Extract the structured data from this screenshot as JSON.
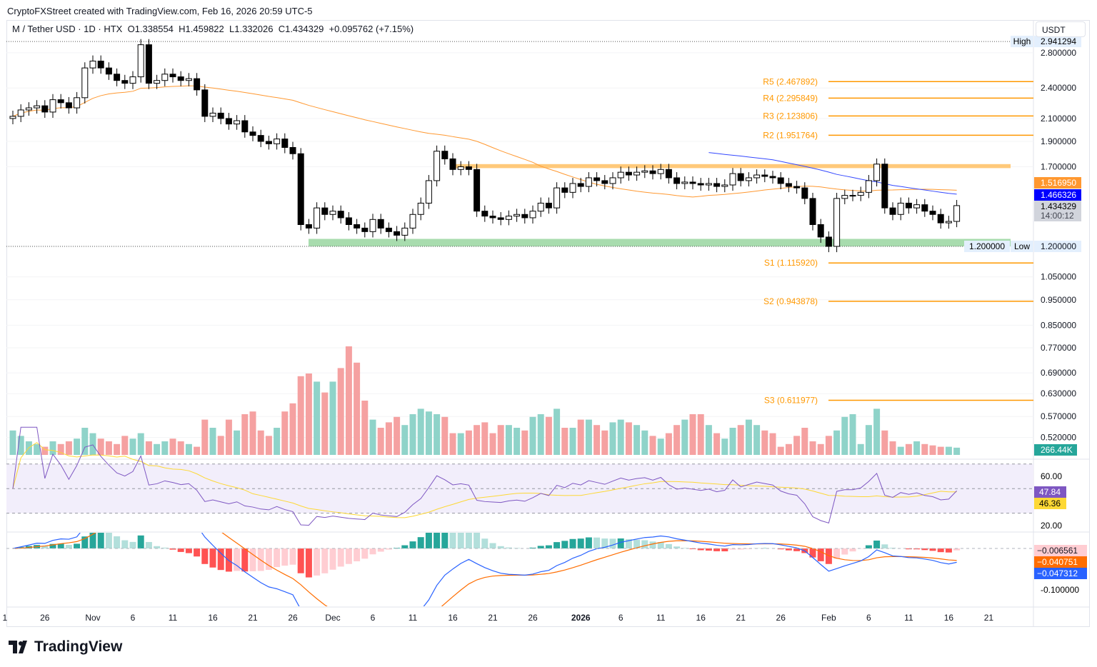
{
  "credit": "CryptoFXStreet created with TradingView.com, Feb 16, 2026 20:59 UTC-5",
  "legend": {
    "symbol": "M / Tether USD · 1D · HTX",
    "open": "O1.338554",
    "high": "H1.459822",
    "low": "L1.332026",
    "close": "C1.434329",
    "change": "+0.095762 (+7.15%)"
  },
  "currency": "USDT",
  "logo": "TradingView",
  "colors": {
    "up": "#ffffff",
    "down": "#000000",
    "vol_up": "#8fd3c9",
    "vol_down": "#f5a1a1",
    "sma": "#ff9830",
    "ma_blue": "#3448ff",
    "resistance": "#ffc97a",
    "support": "#a8dcae",
    "pivot": "#ff9800",
    "rsi": "#7e57c2",
    "rsi_ma": "#fdd835",
    "macd": "#2962ff",
    "signal": "#ff6d00"
  },
  "chart_data": {
    "type": "candlestick",
    "title": "M / Tether USD · 1D · HTX",
    "y_scale": "log",
    "ylim": [
      0.5,
      3.0
    ],
    "y_ticks": [
      "2.800000",
      "2.400000",
      "2.100000",
      "1.900000",
      "1.700000",
      "1.200000",
      "1.050000",
      "0.950000",
      "0.850000",
      "0.770000",
      "0.690000",
      "0.630000",
      "0.570000",
      "0.520000"
    ],
    "x_ticks": [
      {
        "label": "1",
        "i": -1
      },
      {
        "label": "26",
        "i": 4
      },
      {
        "label": "Nov",
        "i": 10
      },
      {
        "label": "6",
        "i": 15
      },
      {
        "label": "11",
        "i": 20
      },
      {
        "label": "16",
        "i": 25
      },
      {
        "label": "21",
        "i": 30
      },
      {
        "label": "26",
        "i": 35
      },
      {
        "label": "Dec",
        "i": 40
      },
      {
        "label": "6",
        "i": 45
      },
      {
        "label": "11",
        "i": 50
      },
      {
        "label": "16",
        "i": 55
      },
      {
        "label": "21",
        "i": 60
      },
      {
        "label": "26",
        "i": 65
      },
      {
        "label": "2026",
        "i": 71
      },
      {
        "label": "6",
        "i": 76
      },
      {
        "label": "11",
        "i": 81
      },
      {
        "label": "16",
        "i": 86
      },
      {
        "label": "21",
        "i": 91
      },
      {
        "label": "26",
        "i": 96
      },
      {
        "label": "Feb",
        "i": 102
      },
      {
        "label": "6",
        "i": 107
      },
      {
        "label": "11",
        "i": 112
      },
      {
        "label": "16",
        "i": 117
      },
      {
        "label": "21",
        "i": 122
      }
    ],
    "start_date": "Oct 22, 2025",
    "first_open": 2.1,
    "close": [
      2.12,
      2.18,
      2.2,
      2.22,
      2.16,
      2.28,
      2.25,
      2.2,
      2.3,
      2.62,
      2.7,
      2.62,
      2.55,
      2.48,
      2.45,
      2.52,
      2.9,
      2.45,
      2.48,
      2.55,
      2.52,
      2.48,
      2.5,
      2.38,
      2.12,
      2.15,
      2.1,
      2.05,
      2.08,
      1.98,
      1.95,
      1.9,
      1.88,
      1.92,
      1.85,
      1.8,
      1.32,
      1.3,
      1.42,
      1.38,
      1.4,
      1.36,
      1.32,
      1.3,
      1.28,
      1.35,
      1.3,
      1.28,
      1.26,
      1.3,
      1.38,
      1.45,
      1.6,
      1.82,
      1.76,
      1.68,
      1.7,
      1.68,
      1.4,
      1.37,
      1.36,
      1.35,
      1.37,
      1.38,
      1.36,
      1.4,
      1.45,
      1.42,
      1.55,
      1.52,
      1.58,
      1.56,
      1.62,
      1.6,
      1.58,
      1.62,
      1.66,
      1.64,
      1.66,
      1.67,
      1.65,
      1.68,
      1.62,
      1.58,
      1.59,
      1.58,
      1.57,
      1.58,
      1.56,
      1.57,
      1.65,
      1.6,
      1.62,
      1.64,
      1.63,
      1.62,
      1.58,
      1.56,
      1.55,
      1.48,
      1.32,
      1.25,
      1.2,
      1.48,
      1.5,
      1.5,
      1.52,
      1.6,
      1.72,
      1.42,
      1.38,
      1.45,
      1.42,
      1.44,
      1.4,
      1.38,
      1.33,
      1.338554,
      1.434329
    ],
    "volume_k": [
      900,
      700,
      500,
      400,
      300,
      500,
      400,
      500,
      600,
      1000,
      800,
      600,
      500,
      400,
      700,
      600,
      800,
      500,
      400,
      500,
      600,
      500,
      400,
      300,
      1300,
      1000,
      700,
      1300,
      900,
      1500,
      1600,
      900,
      700,
      1000,
      1600,
      1900,
      2900,
      3000,
      2700,
      2300,
      2700,
      3200,
      4000,
      3400,
      2000,
      1300,
      1000,
      1200,
      1400,
      1100,
      1500,
      1700,
      1600,
      1500,
      1400,
      800,
      800,
      900,
      1100,
      1200,
      800,
      1100,
      1100,
      1000,
      900,
      1400,
      1500,
      1400,
      1700,
      1000,
      1000,
      1300,
      1300,
      1100,
      900,
      1200,
      1300,
      1200,
      1100,
      900,
      700,
      600,
      800,
      1100,
      1300,
      1500,
      1500,
      1100,
      800,
      600,
      1000,
      1100,
      1300,
      1100,
      900,
      800,
      300,
      400,
      700,
      1000,
      500,
      400,
      700,
      900,
      1400,
      1500,
      400,
      1100,
      1700,
      900,
      500,
      300,
      400,
      500,
      400,
      350,
      300,
      300,
      266.44
    ],
    "pivots": [
      {
        "label": "R5 (2.467892)",
        "value": 2.467892
      },
      {
        "label": "R4 (2.295849)",
        "value": 2.295849
      },
      {
        "label": "R3 (2.123806)",
        "value": 2.123806
      },
      {
        "label": "R2 (1.951764)",
        "value": 1.951764
      },
      {
        "label": "S1 (1.115920)",
        "value": 1.11592
      },
      {
        "label": "S2 (0.943878)",
        "value": 0.943878
      },
      {
        "label": "S3 (0.611977)",
        "value": 0.611977
      }
    ],
    "resistance_zone": [
      1.69,
      1.72
    ],
    "support_zone": [
      1.2,
      1.24
    ],
    "high": {
      "label": "High",
      "value_label": "2.941294",
      "value": 2.941294
    },
    "low": {
      "label": "Low",
      "value_label": "1.200000",
      "value": 1.2
    },
    "price_tags": {
      "sma": "1.516950",
      "ma_blue": "1.466326",
      "last": "1.434329",
      "countdown": "14:00:12",
      "volume": "266.44K"
    },
    "rsi": {
      "ticks": [
        "60.00",
        "20.00"
      ],
      "value": "47.84",
      "ma": "46.36"
    },
    "macd": {
      "ticks": [
        "-0.100000"
      ],
      "hist": "−0.006561",
      "signal": "−0.040751",
      "macd": "−0.047312"
    }
  }
}
